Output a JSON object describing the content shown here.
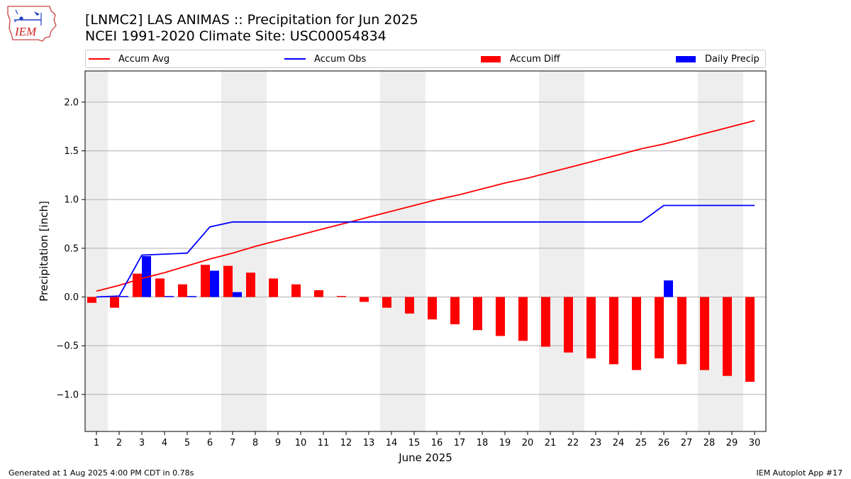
{
  "header": {
    "title": "[LNMC2] LAS ANIMAS :: Precipitation for Jun 2025",
    "subtitle": "NCEI 1991-2020 Climate Site: USC00054834"
  },
  "logo": {
    "text": "IEM"
  },
  "footer": {
    "generated": "Generated at 1 Aug 2025 4:00 PM CDT in 0.78s",
    "app": "IEM Autoplot App #17"
  },
  "legend": {
    "accum_avg": "Accum Avg",
    "accum_obs": "Accum Obs",
    "accum_diff": "Accum Diff",
    "daily_precip": "Daily Precip"
  },
  "colors": {
    "avg": "#ff0000",
    "obs": "#0000ff",
    "diff": "#ff0000",
    "daily": "#0000ff",
    "weekend_band": "#eeeeee",
    "grid": "#b0b0b0"
  },
  "chart_data": {
    "type": "bar",
    "xlabel": "June 2025",
    "ylabel": "Precipitation [inch]",
    "ylim": [
      -1.38,
      2.32
    ],
    "yticks": [
      2.0,
      1.5,
      1.0,
      0.5,
      0.0,
      -0.5,
      -1.0
    ],
    "ytick_labels": [
      "2.0",
      "1.5",
      "1.0",
      "0.5",
      "0.0",
      "−0.5",
      "−1.0"
    ],
    "grid": true,
    "legend_position": "top",
    "x": [
      1,
      2,
      3,
      4,
      5,
      6,
      7,
      8,
      9,
      10,
      11,
      12,
      13,
      14,
      15,
      16,
      17,
      18,
      19,
      20,
      21,
      22,
      23,
      24,
      25,
      26,
      27,
      28,
      29,
      30
    ],
    "weekend_days": [
      1,
      7,
      8,
      14,
      15,
      21,
      22,
      28,
      29
    ],
    "series": [
      {
        "name": "Accum Avg",
        "kind": "line",
        "values": [
          0.06,
          0.12,
          0.19,
          0.25,
          0.32,
          0.39,
          0.45,
          0.52,
          0.58,
          0.64,
          0.7,
          0.76,
          0.82,
          0.88,
          0.94,
          1.0,
          1.05,
          1.11,
          1.17,
          1.22,
          1.28,
          1.34,
          1.4,
          1.46,
          1.52,
          1.57,
          1.63,
          1.69,
          1.75,
          1.81
        ]
      },
      {
        "name": "Accum Obs",
        "kind": "line",
        "values": [
          0.0,
          0.01,
          0.43,
          0.44,
          0.45,
          0.72,
          0.77,
          0.77,
          0.77,
          0.77,
          0.77,
          0.77,
          0.77,
          0.77,
          0.77,
          0.77,
          0.77,
          0.77,
          0.77,
          0.77,
          0.77,
          0.77,
          0.77,
          0.77,
          0.77,
          0.94,
          0.94,
          0.94,
          0.94,
          0.94
        ]
      },
      {
        "name": "Accum Diff",
        "kind": "bar",
        "values": [
          -0.06,
          -0.11,
          0.24,
          0.19,
          0.13,
          0.33,
          0.32,
          0.25,
          0.19,
          0.13,
          0.07,
          0.01,
          -0.05,
          -0.11,
          -0.17,
          -0.23,
          -0.28,
          -0.34,
          -0.4,
          -0.45,
          -0.51,
          -0.57,
          -0.63,
          -0.69,
          -0.75,
          -0.63,
          -0.69,
          -0.75,
          -0.81,
          -0.87
        ]
      },
      {
        "name": "Daily Precip",
        "kind": "bar",
        "values": [
          0.0,
          0.01,
          0.42,
          0.01,
          0.01,
          0.27,
          0.05,
          0,
          0,
          0,
          0,
          0,
          0,
          0,
          0,
          0,
          0,
          0,
          0,
          0,
          0,
          0,
          0,
          0,
          0,
          0.17,
          0,
          0,
          0,
          0
        ]
      }
    ]
  }
}
